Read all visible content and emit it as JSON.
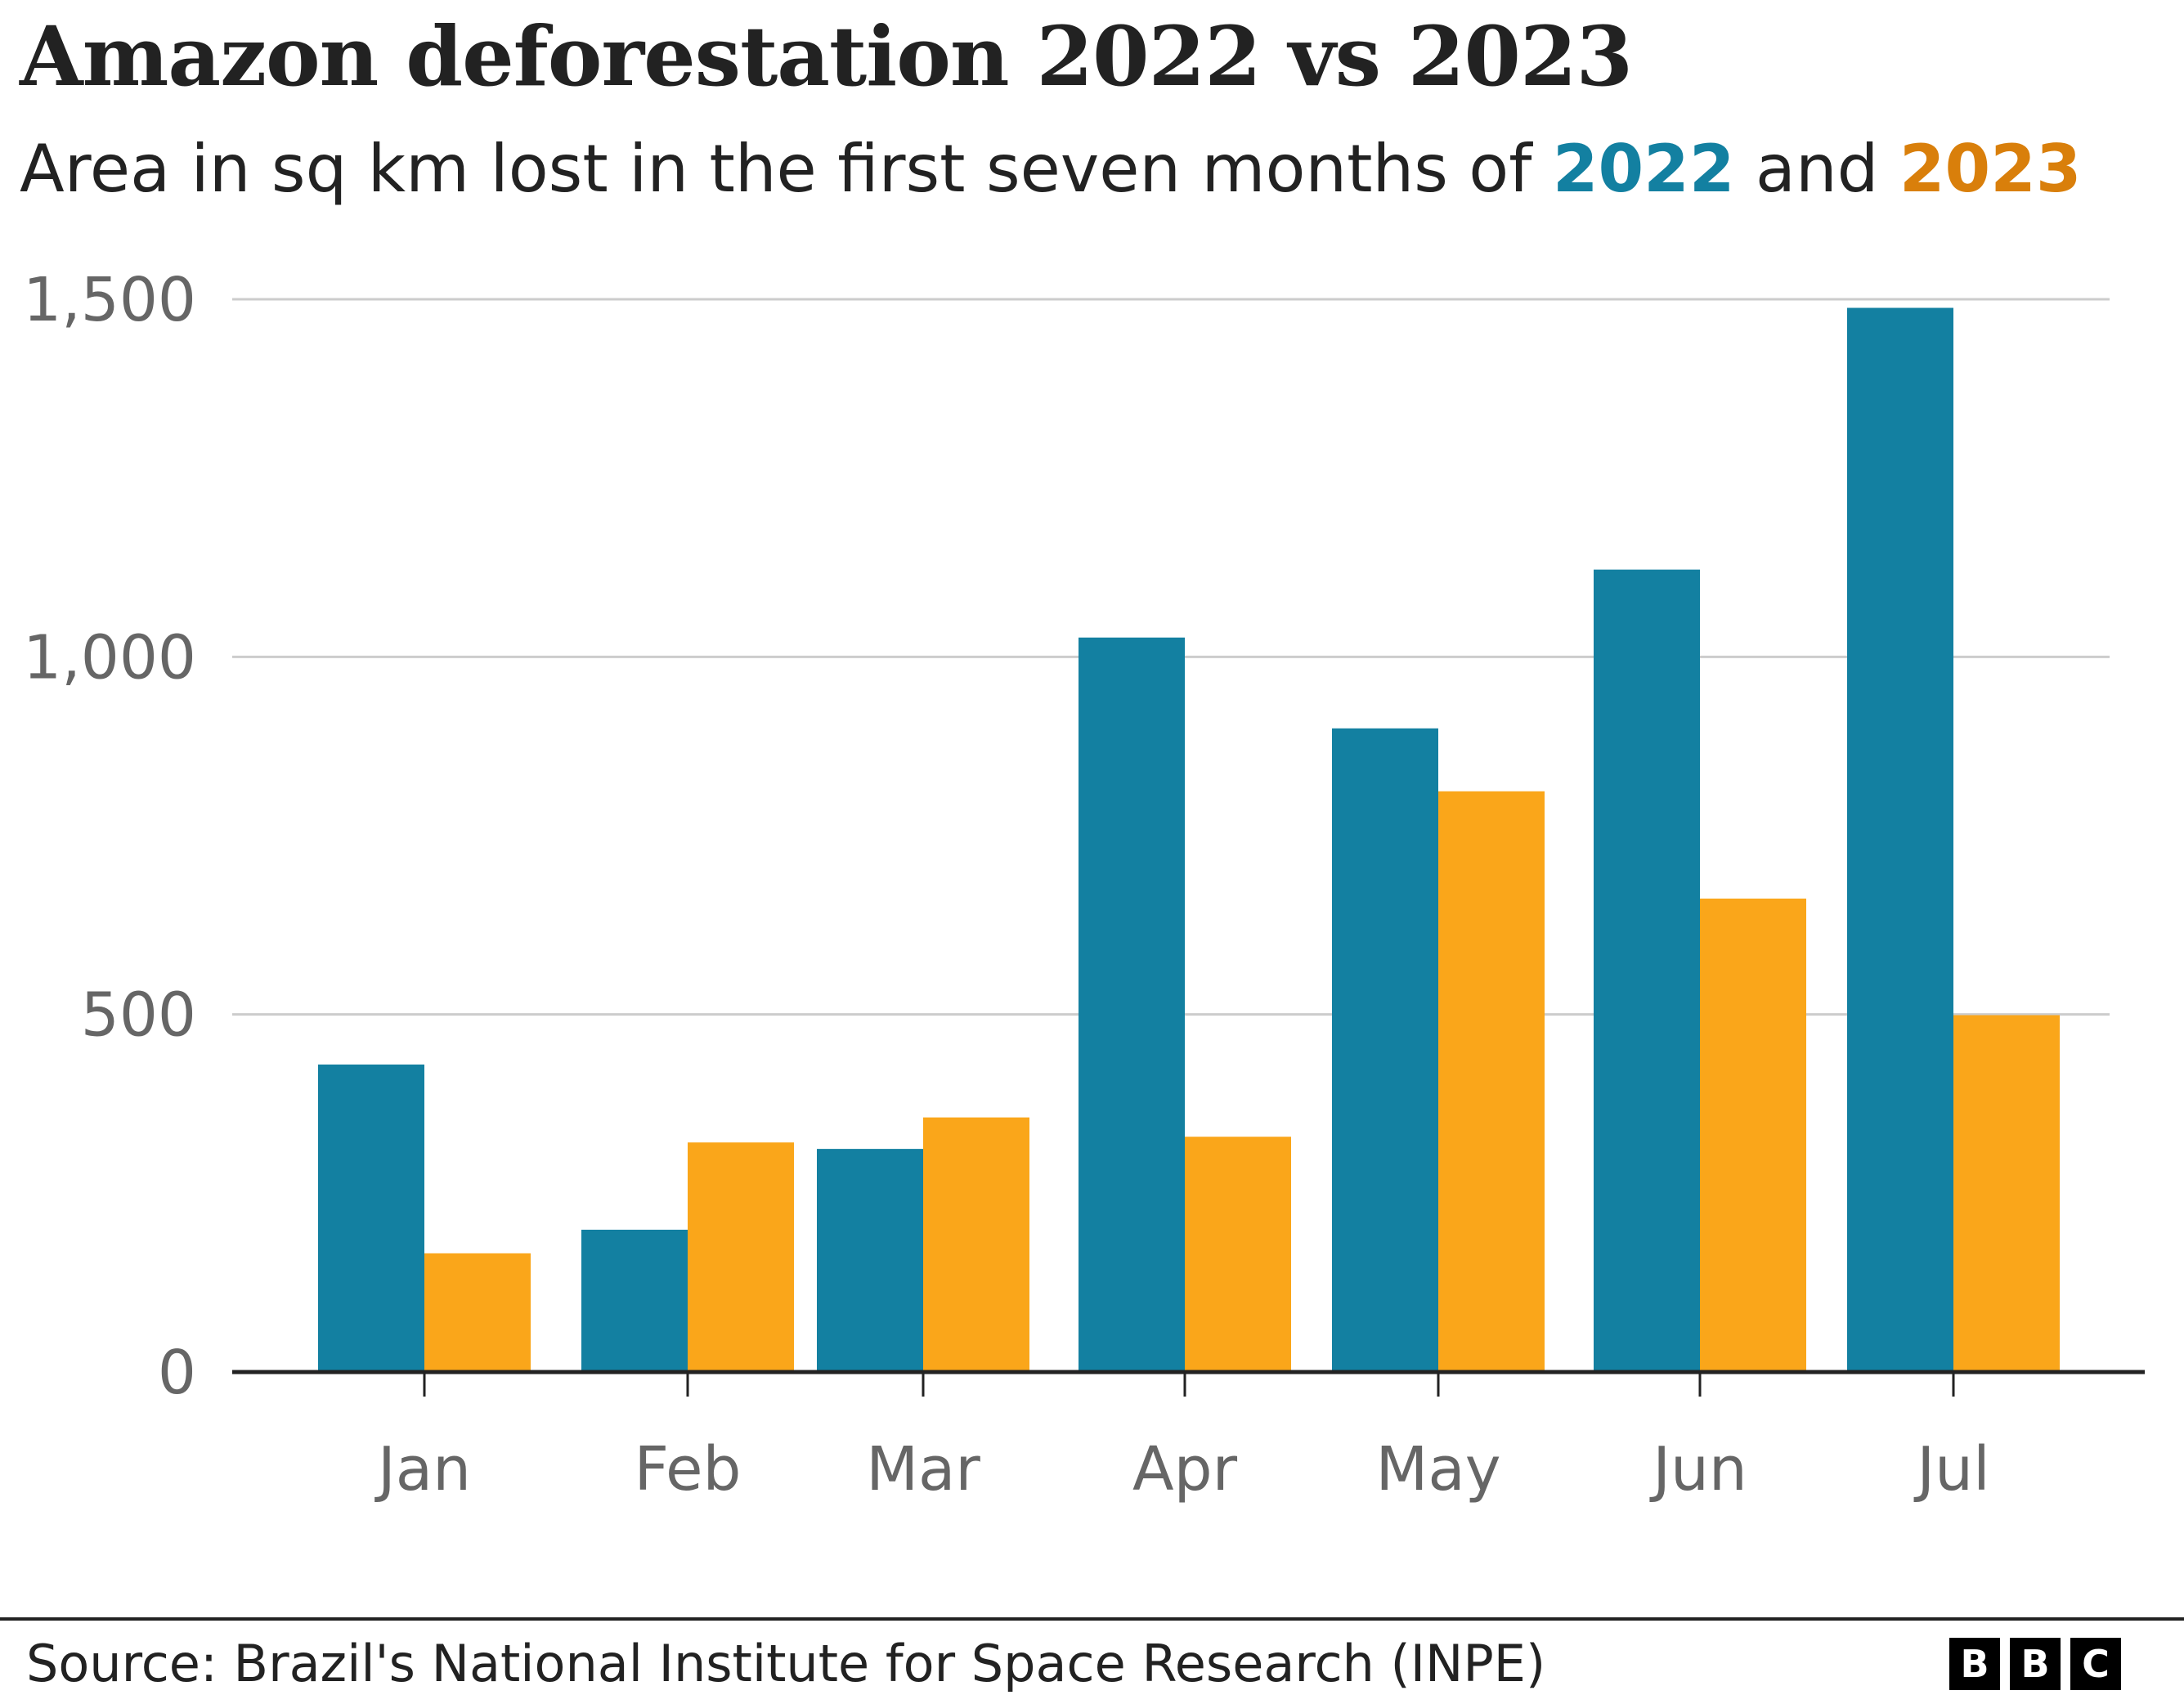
{
  "chart_data": {
    "type": "bar",
    "title": "Amazon deforestation 2022 vs 2023",
    "subtitle": {
      "prefix": "Area in sq km lost in the first seven months of ",
      "series1": "2022",
      "middle": " and ",
      "series2": "2023"
    },
    "categories": [
      "Jan",
      "Feb",
      "Mar",
      "Apr",
      "May",
      "Jun",
      "Jul"
    ],
    "series": [
      {
        "name": "2022",
        "color": "#1380A1",
        "values": [
          430,
          199,
          312,
          1027,
          900,
          1122,
          1488
        ]
      },
      {
        "name": "2023",
        "color": "#FAA61A",
        "values": [
          166,
          321,
          356,
          329,
          812,
          662,
          499
        ]
      }
    ],
    "yticks": [
      0,
      500,
      1000,
      1500
    ],
    "ytick_labels": [
      "0",
      "500",
      "1,000",
      "1,500"
    ],
    "ylim": [
      0,
      1500
    ],
    "grid": true,
    "legend": "in subtitle"
  },
  "footer": {
    "source": "Source: Brazil's National Institute for Space Research (INPE)",
    "logo": [
      "B",
      "B",
      "C"
    ]
  }
}
